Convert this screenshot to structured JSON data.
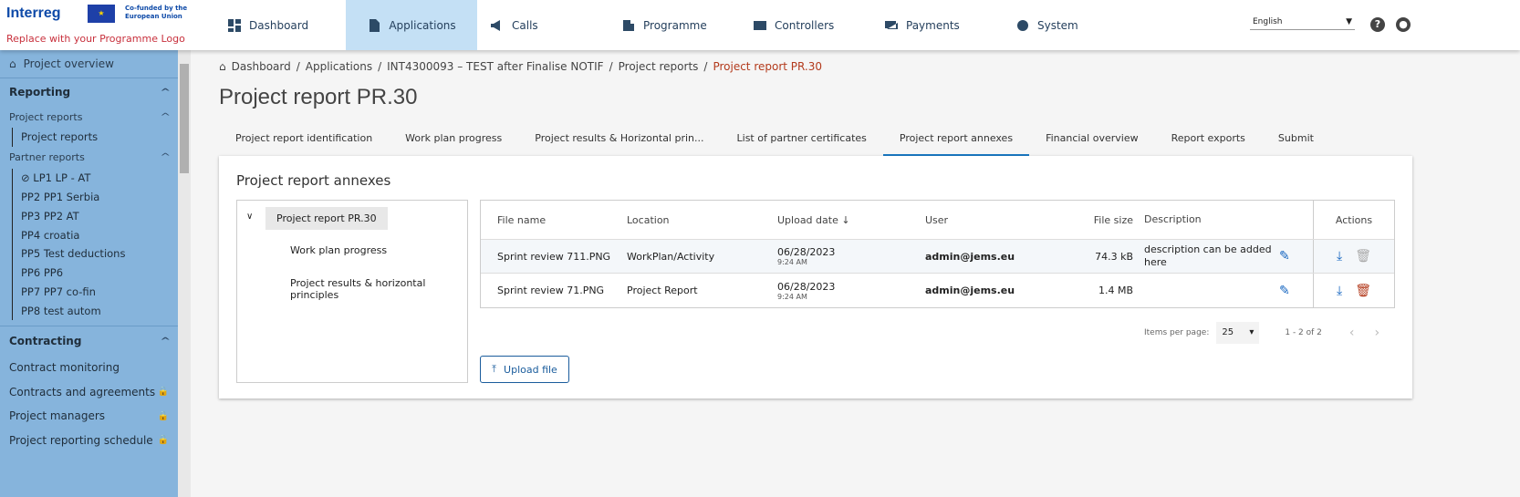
{
  "logo": {
    "brand": "Interreg",
    "cofund": "Co-funded by the European Union",
    "replace": "Replace with your Programme Logo"
  },
  "nav": [
    {
      "label": "Dashboard",
      "icon": "dashboard-icon"
    },
    {
      "label": "Applications",
      "icon": "document-icon",
      "active": true
    },
    {
      "label": "Calls",
      "icon": "megaphone-icon"
    },
    {
      "label": "Programme",
      "icon": "building-icon"
    },
    {
      "label": "Controllers",
      "icon": "checklist-icon"
    },
    {
      "label": "Payments",
      "icon": "payments-icon"
    },
    {
      "label": "System",
      "icon": "gear-icon"
    }
  ],
  "language": "English",
  "sidebar": {
    "overview": "Project overview",
    "reporting": "Reporting",
    "project_reports": "Project reports",
    "project_reports_leaf": "Project reports",
    "partner_reports": "Partner reports",
    "partners": [
      "LP1 LP - AT",
      "PP2 PP1 Serbia",
      "PP3 PP2 AT",
      "PP4 croatia",
      "PP5 Test deductions",
      "PP6 PP6",
      "PP7 PP7 co-fin",
      "PP8 test autom"
    ],
    "contracting": "Contracting",
    "contracting_items": [
      "Contract monitoring",
      "Contracts and agreements",
      "Project managers",
      "Project reporting schedule"
    ]
  },
  "breadcrumb": [
    "Dashboard",
    "Applications",
    "INT4300093 – TEST after Finalise NOTIF",
    "Project reports",
    "Project report PR.30"
  ],
  "title": "Project report PR.30",
  "tabs": [
    "Project report identification",
    "Work plan progress",
    "Project results & Horizontal prin...",
    "List of partner certificates",
    "Project report annexes",
    "Financial overview",
    "Report exports",
    "Submit"
  ],
  "annexes": {
    "heading": "Project report annexes",
    "tree": {
      "root": "Project report PR.30",
      "children": [
        "Work plan progress",
        "Project results & horizontal principles"
      ]
    },
    "columns": [
      "File name",
      "Location",
      "Upload date",
      "User",
      "File size",
      "Description",
      "Actions"
    ],
    "rows": [
      {
        "name": "Sprint review 711.PNG",
        "location": "WorkPlan/Activity",
        "date": "06/28/2023",
        "time": "9:24 AM",
        "user": "admin@jems.eu",
        "size": "74.3 kB",
        "description": "description can be added here"
      },
      {
        "name": "Sprint review 71.PNG",
        "location": "Project Report",
        "date": "06/28/2023",
        "time": "9:24 AM",
        "user": "admin@jems.eu",
        "size": "1.4 MB",
        "description": ""
      }
    ],
    "items_per_page_label": "Items per page:",
    "items_per_page": "25",
    "range": "1 - 2 of 2",
    "upload": "Upload file"
  },
  "colors": {
    "sidebar": "#86b4dc",
    "active_nav": "#c4e0f5",
    "accent": "#1a78c2",
    "delete": "#b33a1c"
  }
}
